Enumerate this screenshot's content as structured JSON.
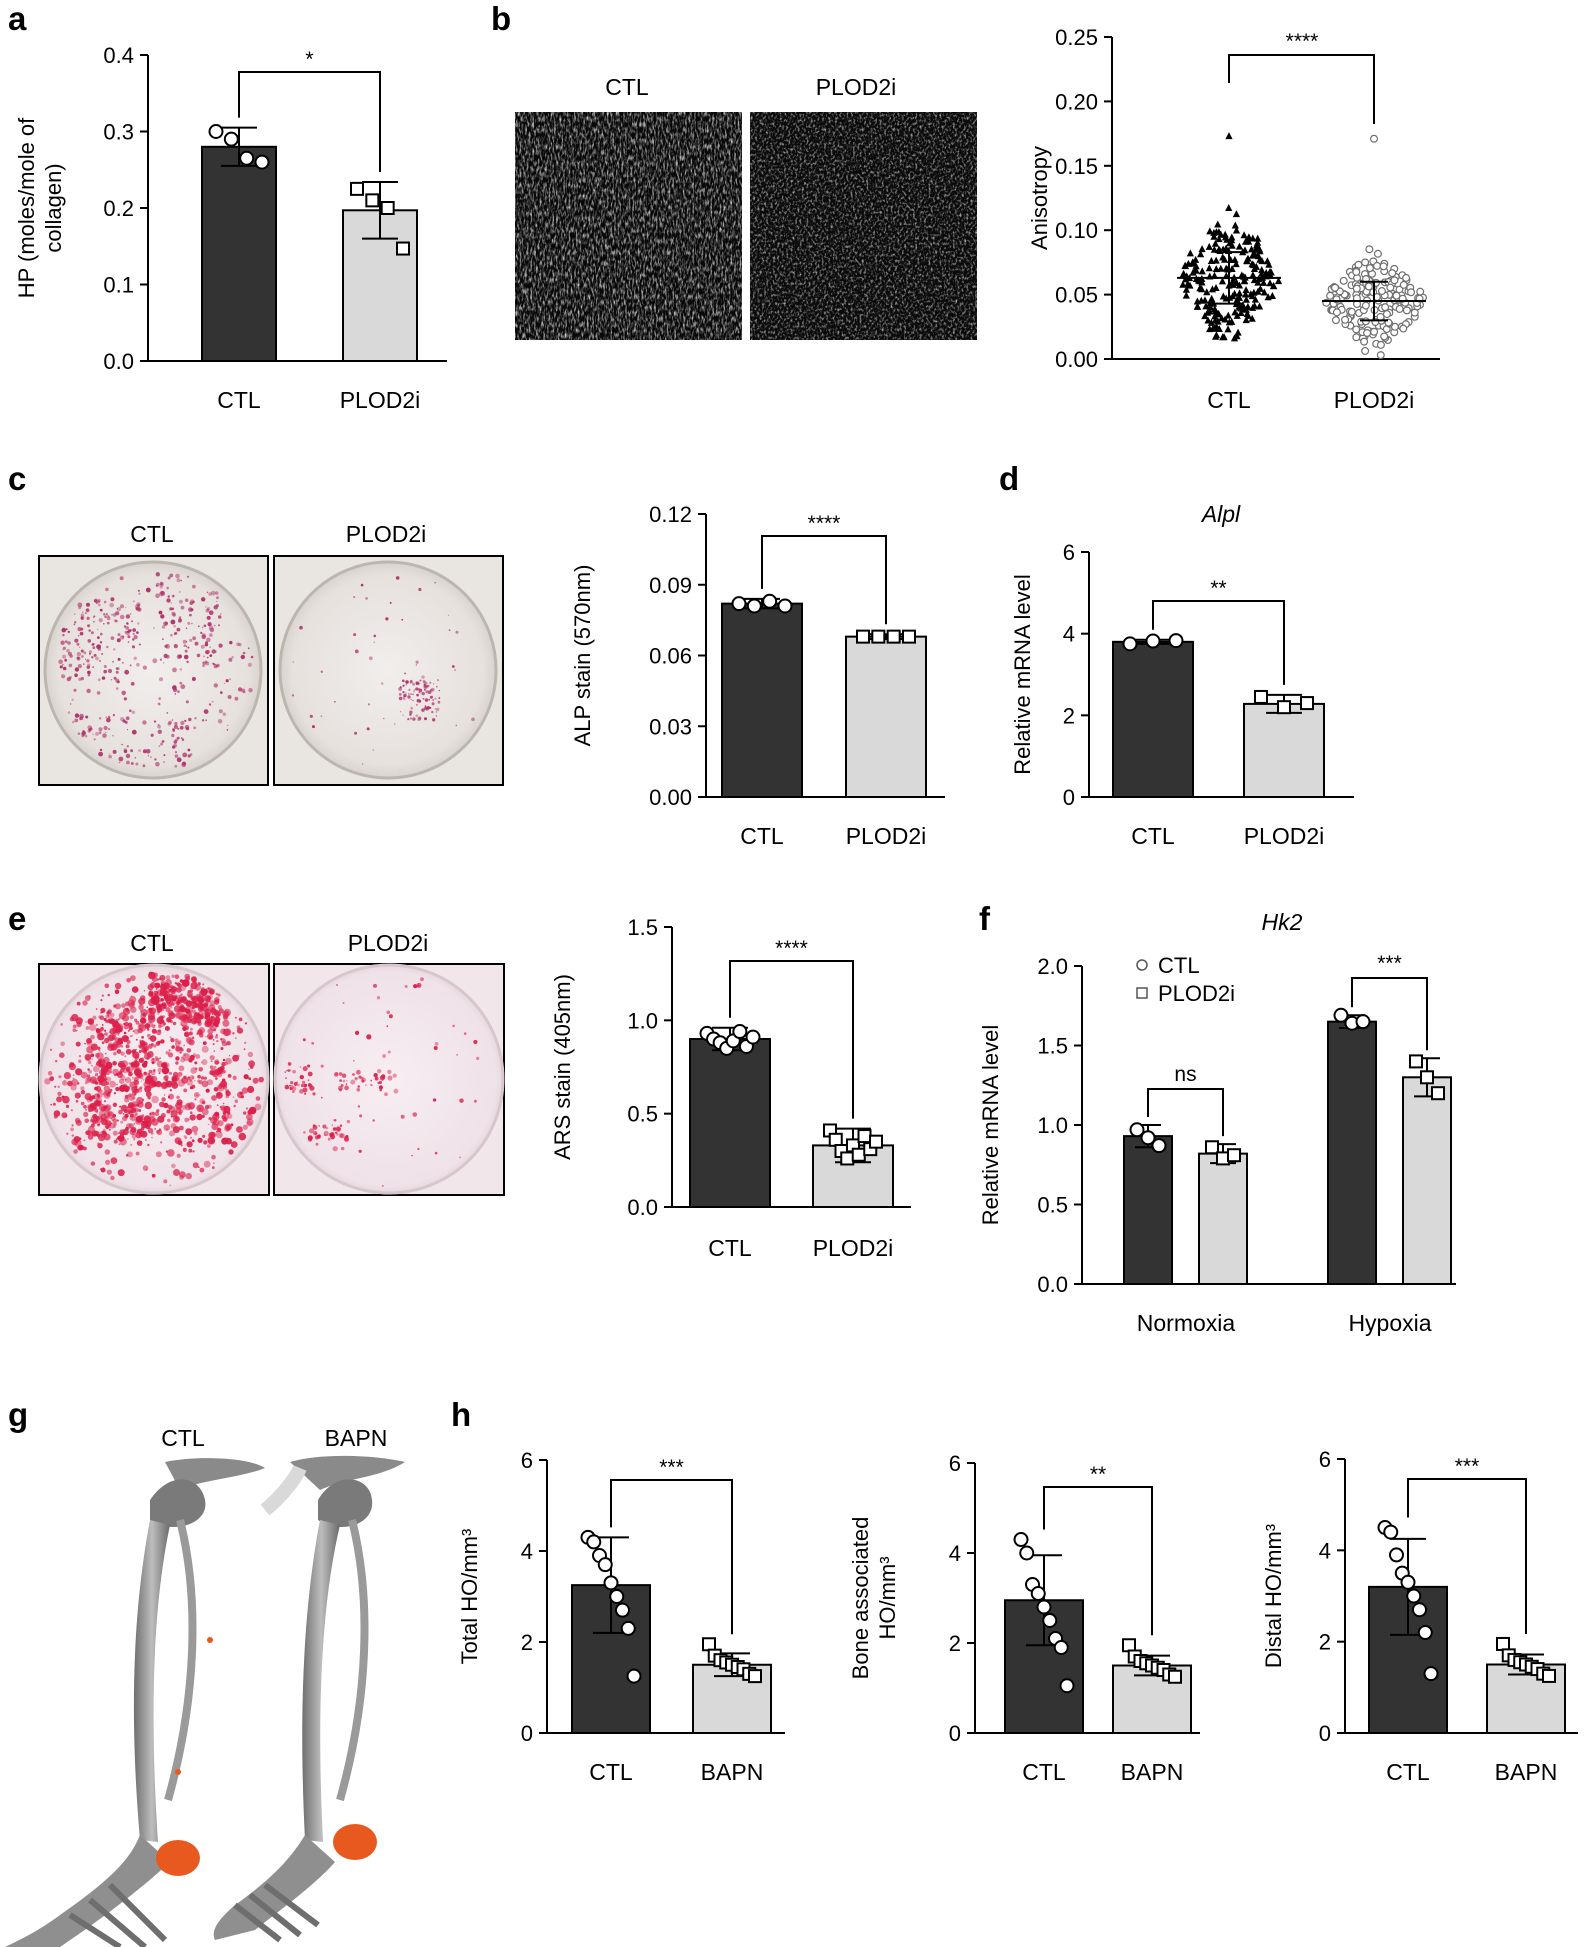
{
  "panel_labels": [
    "a",
    "b",
    "c",
    "d",
    "e",
    "f",
    "g",
    "h"
  ],
  "image_captions": {
    "b": [
      "CTL",
      "PLOD2i"
    ],
    "c": [
      "CTL",
      "PLOD2i"
    ],
    "e": [
      "CTL",
      "PLOD2i"
    ],
    "g": [
      "CTL",
      "BAPN"
    ]
  },
  "colors": {
    "ctl_bar": "#333333",
    "treated_bar": "#d9d9d9",
    "ho_orange": "#e8591f",
    "alp_stain": "#b0306a",
    "ars_stain": "#dc1f4a"
  },
  "chart_data": [
    {
      "id": "a",
      "type": "bar",
      "categories": [
        "CTL",
        "PLOD2i"
      ],
      "values": [
        0.28,
        0.197
      ],
      "errors": [
        0.025,
        0.037
      ],
      "points": [
        [
          0.3,
          0.29,
          0.265,
          0.26
        ],
        [
          0.225,
          0.21,
          0.2,
          0.147
        ]
      ],
      "ylabel": "HP (moles/mole of collagen)",
      "ylim": [
        0,
        0.4
      ],
      "yticks": [
        "0.0",
        "0.1",
        "0.2",
        "0.3",
        "0.4"
      ],
      "significance": "*"
    },
    {
      "id": "b",
      "type": "scatter",
      "categories": [
        "CTL",
        "PLOD2i"
      ],
      "median": [
        0.063,
        0.045
      ],
      "spread": [
        0.02,
        0.015
      ],
      "max_points": [
        0.173,
        0.171
      ],
      "ylabel": "Anisotropy",
      "ylim": [
        0,
        0.25
      ],
      "yticks": [
        "0.00",
        "0.05",
        "0.10",
        "0.15",
        "0.20",
        "0.25"
      ],
      "significance": "****"
    },
    {
      "id": "c",
      "type": "bar",
      "categories": [
        "CTL",
        "PLOD2i"
      ],
      "values": [
        0.082,
        0.068
      ],
      "errors": [
        0.002,
        0.001
      ],
      "points": [
        [
          0.082,
          0.081,
          0.083,
          0.081
        ],
        [
          0.068,
          0.068,
          0.068,
          0.068
        ]
      ],
      "ylabel": "ALP stain (570nm)",
      "ylim": [
        0,
        0.12
      ],
      "yticks": [
        "0.00",
        "0.03",
        "0.06",
        "0.09",
        "0.12"
      ],
      "significance": "****"
    },
    {
      "id": "d",
      "type": "bar",
      "title": "Alpl",
      "categories": [
        "CTL",
        "PLOD2i"
      ],
      "values": [
        3.8,
        2.28
      ],
      "errors": [
        0.05,
        0.22
      ],
      "points": [
        [
          3.75,
          3.82,
          3.83
        ],
        [
          2.45,
          2.2,
          2.3
        ]
      ],
      "ylabel": "Relative mRNA level",
      "ylim": [
        0,
        6
      ],
      "yticks": [
        "0",
        "2",
        "4",
        "6"
      ],
      "significance": "**"
    },
    {
      "id": "e",
      "type": "bar",
      "categories": [
        "CTL",
        "PLOD2i"
      ],
      "values": [
        0.9,
        0.33
      ],
      "errors": [
        0.06,
        0.09
      ],
      "points": [
        [
          0.93,
          0.9,
          0.88,
          0.85,
          0.89,
          0.94,
          0.86,
          0.91
        ],
        [
          0.41,
          0.36,
          0.3,
          0.26,
          0.33,
          0.28,
          0.38,
          0.31,
          0.35
        ]
      ],
      "ylabel": "ARS stain (405nm)",
      "ylim": [
        0,
        1.5
      ],
      "yticks": [
        "0.0",
        "0.5",
        "1.0",
        "1.5"
      ],
      "significance": "****"
    },
    {
      "id": "f",
      "type": "bar",
      "title": "Hk2",
      "categories": [
        "Normoxia",
        "Hypoxia"
      ],
      "series": [
        {
          "name": "CTL",
          "values": [
            0.93,
            1.65
          ],
          "errors": [
            0.07,
            0.04
          ],
          "points": [
            [
              0.97,
              0.92,
              0.87
            ],
            [
              1.69,
              1.64,
              1.65
            ]
          ]
        },
        {
          "name": "PLOD2i",
          "values": [
            0.82,
            1.3
          ],
          "errors": [
            0.06,
            0.12
          ],
          "points": [
            [
              0.86,
              0.79,
              0.81
            ],
            [
              1.4,
              1.3,
              1.2
            ]
          ]
        }
      ],
      "ylabel": "Relative mRNA level",
      "ylim": [
        0,
        2.0
      ],
      "yticks": [
        "0.0",
        "0.5",
        "1.0",
        "1.5",
        "2.0"
      ],
      "legend_position": "top-left",
      "significance": [
        "ns",
        "***"
      ]
    },
    {
      "id": "h1",
      "type": "bar",
      "categories": [
        "CTL",
        "BAPN"
      ],
      "values": [
        3.25,
        1.5
      ],
      "errors": [
        1.05,
        0.25
      ],
      "points": [
        [
          4.3,
          4.2,
          3.9,
          3.7,
          3.3,
          3.0,
          2.7,
          2.3,
          1.25
        ],
        [
          1.95,
          1.7,
          1.6,
          1.55,
          1.5,
          1.45,
          1.4,
          1.3,
          1.25
        ]
      ],
      "ylabel": "Total HO/mm³",
      "ylim": [
        0,
        6
      ],
      "yticks": [
        "0",
        "2",
        "4",
        "6"
      ],
      "significance": "***"
    },
    {
      "id": "h2",
      "type": "bar",
      "categories": [
        "CTL",
        "BAPN"
      ],
      "values": [
        2.95,
        1.5
      ],
      "errors": [
        1.0,
        0.22
      ],
      "points": [
        [
          4.3,
          4.0,
          3.3,
          3.1,
          2.8,
          2.5,
          2.1,
          1.9,
          1.05
        ],
        [
          1.95,
          1.7,
          1.6,
          1.55,
          1.5,
          1.45,
          1.4,
          1.3,
          1.25
        ]
      ],
      "ylabel": "Bone associated HO/mm³",
      "ylim": [
        0,
        6
      ],
      "yticks": [
        "0",
        "2",
        "4",
        "6"
      ],
      "significance": "**"
    },
    {
      "id": "h3",
      "type": "bar",
      "categories": [
        "CTL",
        "BAPN"
      ],
      "values": [
        3.2,
        1.5
      ],
      "errors": [
        1.05,
        0.22
      ],
      "points": [
        [
          4.5,
          4.4,
          3.9,
          3.5,
          3.3,
          3.0,
          2.7,
          2.2,
          1.3
        ],
        [
          1.95,
          1.7,
          1.6,
          1.55,
          1.5,
          1.45,
          1.4,
          1.3,
          1.25
        ]
      ],
      "ylabel": "Distal HO/mm³",
      "ylim": [
        0,
        6
      ],
      "yticks": [
        "0",
        "2",
        "4",
        "6"
      ],
      "significance": "***"
    }
  ]
}
